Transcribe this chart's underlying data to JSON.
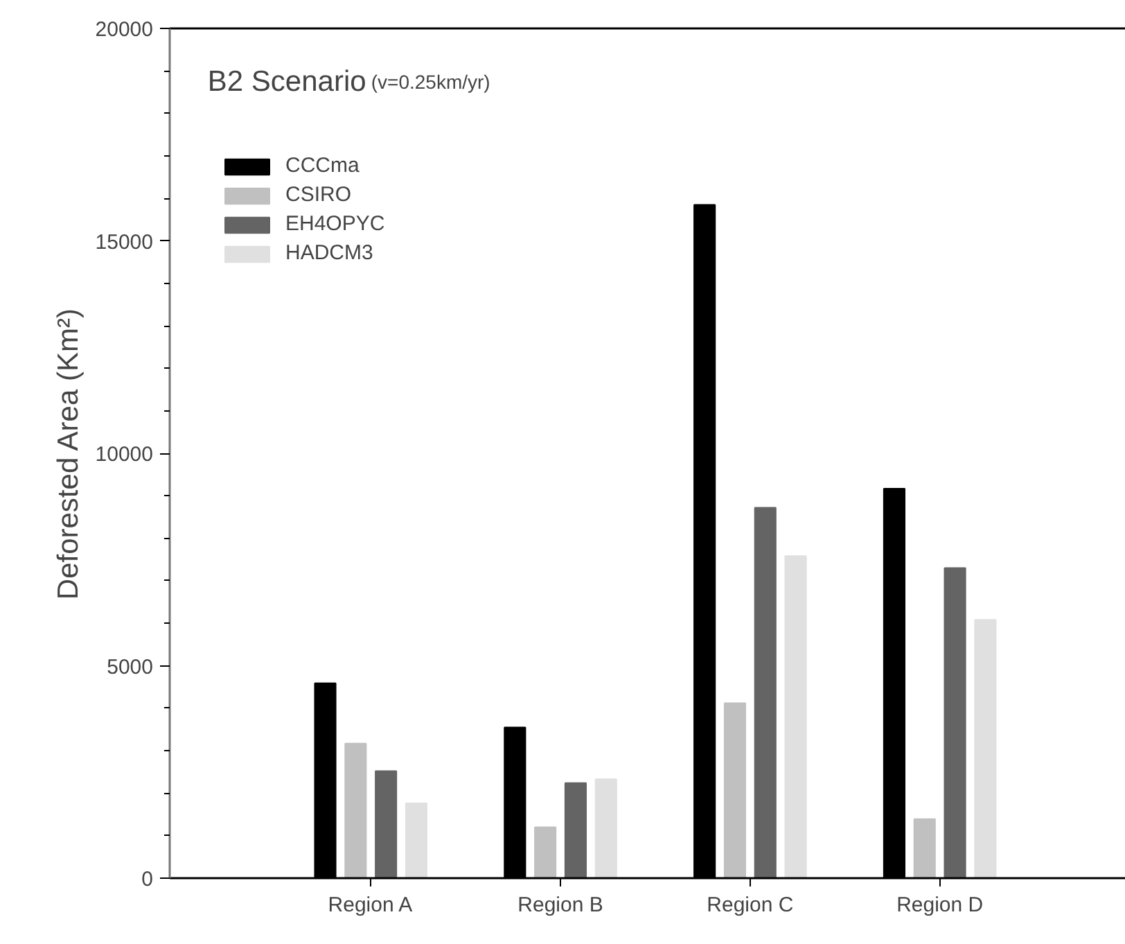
{
  "chart_data": {
    "type": "bar",
    "title": "B2 Scenario",
    "subtitle": "(v=0.25km/yr)",
    "ylabel": "Deforested Area (Km²)",
    "categories": [
      "Region A",
      "Region B",
      "Region C",
      "Region D"
    ],
    "series": [
      {
        "name": "CCCma",
        "color": "#000000",
        "values": [
          4590,
          3550,
          15850,
          9170
        ]
      },
      {
        "name": "CSIRO",
        "color": "#c0c0c0",
        "values": [
          3170,
          1200,
          4120,
          1390
        ]
      },
      {
        "name": "EH4OPYC",
        "color": "#646464",
        "values": [
          2520,
          2240,
          8720,
          7300
        ]
      },
      {
        "name": "HADCM3",
        "color": "#e0e0e0",
        "values": [
          1760,
          2330,
          7580,
          6080
        ]
      }
    ],
    "ylim": [
      0,
      20000
    ],
    "yticks": [
      0,
      5000,
      10000,
      15000,
      20000
    ],
    "grid": false,
    "legend": "top left"
  }
}
